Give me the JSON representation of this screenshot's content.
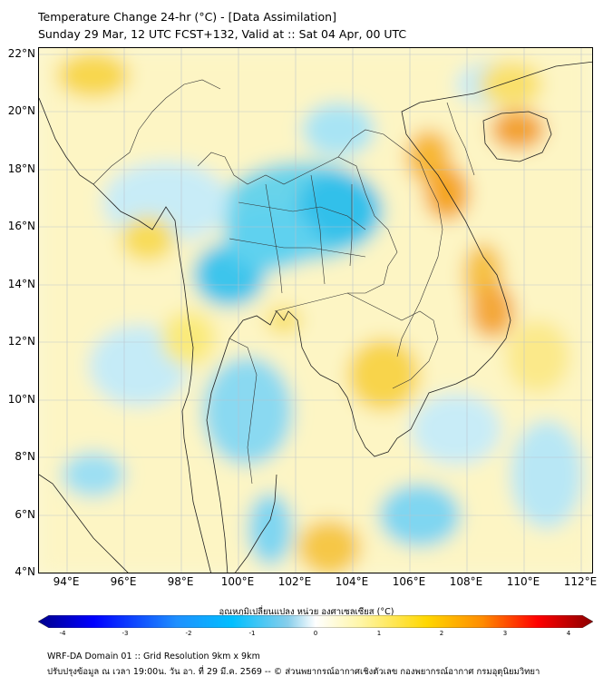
{
  "header": {
    "title_line1": "Temperature Change 24-hr (°C) - [Data Assimilation]",
    "title_line2": "Sunday 29 Mar, 12 UTC FCST+132, Valid at :: Sat 04 Apr, 00 UTC"
  },
  "map": {
    "lat_labels": [
      "22°N",
      "20°N",
      "18°N",
      "16°N",
      "14°N",
      "12°N",
      "10°N",
      "8°N",
      "6°N",
      "4°N"
    ],
    "lon_labels": [
      "94°E",
      "96°E",
      "98°E",
      "100°E",
      "102°E",
      "104°E",
      "106°E",
      "108°E",
      "110°E",
      "112°E"
    ],
    "lon_range": [
      93,
      112.5
    ],
    "lat_range": [
      4,
      22.2
    ],
    "background_color": "#fbf7d6"
  },
  "colorbar": {
    "label": "อุณหภูมิเปลี่ยนแปลง หน่วย องศาเซลเซียส (°C)",
    "tick_labels": [
      "-4",
      "-3",
      "-2",
      "-1",
      "0",
      "1",
      "2",
      "3",
      "4"
    ],
    "colors": [
      "#00008b",
      "#0000ff",
      "#1e90ff",
      "#00bfff",
      "#87ceeb",
      "#ffffff",
      "#fff6a8",
      "#ffd700",
      "#ff8c00",
      "#ff0000",
      "#8b0000"
    ]
  },
  "footer": {
    "line1": "WRF-DA Domain 01 :: Grid Resolution 9km x 9km",
    "line2": "ปรับปรุงข้อมูล ณ เวลา 19:00น. วัน อา. ที่ 29 มี.ค. 2569 -- © ส่วนพยากรณ์อากาศเชิงตัวเลข กองพยากรณ์อากาศ กรมอุตุนิยมวิทยา"
  }
}
